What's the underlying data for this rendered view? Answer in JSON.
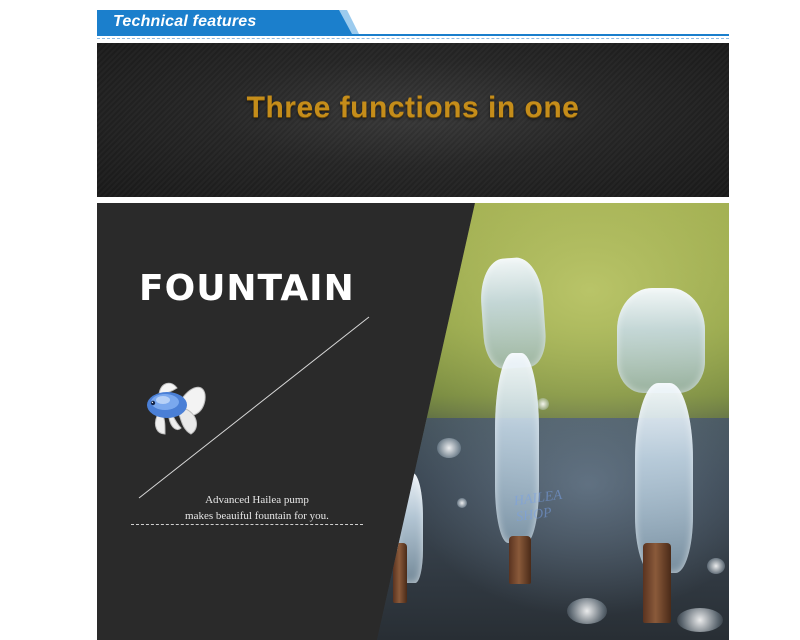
{
  "header": {
    "title": "Technical features",
    "accent_color": "#1b7fcc"
  },
  "banner": {
    "headline": "Three functions in one",
    "headline_color": "#c58d1a"
  },
  "feature": {
    "title": "FOUNTAIN",
    "caption_line1": "Advanced Hailea pump",
    "caption_line2": "makes beauiful fountain for you.",
    "icon": "goldfish-icon",
    "photo_watermark_line1": "HAILEA",
    "photo_watermark_line2": "SHOP"
  }
}
